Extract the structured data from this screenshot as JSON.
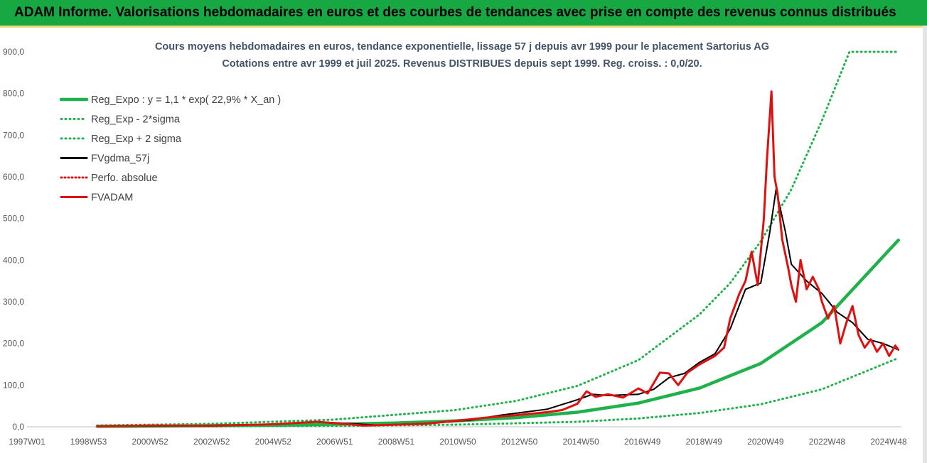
{
  "header": {
    "title": "ADAM Informe. Valorisations hebdomadaires en euros et des courbes de tendances avec prise en compte des revenus connus distribués"
  },
  "colors": {
    "header_bg": "#17a843",
    "reg_expo": "#1fb24a",
    "sigma": "#1fb24a",
    "fvgdma": "#000000",
    "perfo": "#e01010",
    "fvadam": "#e01010"
  },
  "chart_data": {
    "type": "line",
    "title": "Cours moyens hebdomadaires en euros, tendance exponentielle, lissage 57 j depuis avr 1999 pour le placement Sartorius AG",
    "subtitle": "Cotations entre avr 1999 et juil 2025. Revenus DISTRIBUES depuis sept 1999. Reg. croiss. : 0,0/20.",
    "xlabel": "",
    "ylabel": "",
    "ylim": [
      0,
      900
    ],
    "y_ticks": [
      "0,0",
      "100,0",
      "200,0",
      "300,0",
      "400,0",
      "500,0",
      "600,0",
      "700,0",
      "800,0",
      "900,0"
    ],
    "x_tick_labels": [
      "1997W01",
      "1998W53",
      "2000W52",
      "2002W52",
      "2004W52",
      "2006W51",
      "2008W51",
      "2010W50",
      "2012W50",
      "2014W50",
      "2016W49",
      "2018W49",
      "2020W49",
      "2022W48",
      "2024W48"
    ],
    "xlim": [
      1997.0,
      2025.6
    ],
    "grid": false,
    "legend_position": "top-left",
    "series": [
      {
        "name": "Reg_Expo : y = 1,1 * exp( 22,9% *  X_an )",
        "style": "solid-thick",
        "x": [
          1999.3,
          2001,
          2003,
          2005,
          2007,
          2009,
          2011,
          2013,
          2015,
          2017,
          2019,
          2021,
          2023,
          2025.5
        ],
        "values": [
          1.1,
          1.6,
          2.5,
          4,
          6,
          9,
          14,
          22,
          35,
          57,
          93,
          152,
          250,
          448
        ]
      },
      {
        "name": "Reg_Exp - 2*sigma",
        "style": "dotted",
        "x": [
          1999.3,
          2003,
          2007,
          2011,
          2015,
          2017,
          2019,
          2021,
          2023,
          2025.5
        ],
        "values": [
          0.4,
          0.9,
          2,
          5,
          12,
          20,
          33,
          54,
          90,
          165
        ]
      },
      {
        "name": "Reg_Exp + 2 sigma",
        "style": "dotted",
        "x": [
          1999.3,
          2003,
          2007,
          2011,
          2013,
          2015,
          2017,
          2019,
          2020,
          2021,
          2022,
          2023,
          2023.9,
          2025.5
        ],
        "values": [
          3.2,
          7,
          17,
          40,
          62,
          98,
          160,
          270,
          345,
          445,
          570,
          735,
          900,
          900
        ]
      },
      {
        "name": "FVgdma_57j",
        "style": "solid",
        "x": [
          1999.3,
          2002,
          2005,
          2006.5,
          2008.5,
          2010,
          2011.5,
          2012.5,
          2014,
          2015,
          2015.5,
          2016,
          2017,
          2017.5,
          2018,
          2018.5,
          2019,
          2019.5,
          2020,
          2020.5,
          2021,
          2021.3,
          2021.5,
          2021.8,
          2022,
          2022.5,
          2023,
          2023.5,
          2024,
          2024.5,
          2025,
          2025.5
        ],
        "values": [
          1,
          2,
          6,
          12,
          4,
          8,
          16,
          28,
          42,
          65,
          78,
          75,
          78,
          90,
          118,
          128,
          155,
          175,
          235,
          330,
          345,
          470,
          570,
          470,
          390,
          350,
          320,
          275,
          250,
          210,
          200,
          185
        ]
      },
      {
        "name": "Perfo. absolue",
        "style": "dotted",
        "x": [
          1999.3,
          2002,
          2005,
          2006.5,
          2008.5,
          2010,
          2011.5,
          2012.5,
          2014,
          2015,
          2015.5,
          2016,
          2017,
          2017.5,
          2018,
          2018.5,
          2019,
          2019.5,
          2020,
          2020.5,
          2021,
          2021.3,
          2021.5,
          2021.8,
          2022,
          2022.5,
          2023,
          2023.5,
          2024,
          2024.5,
          2025,
          2025.5
        ],
        "values": [
          1,
          2,
          6,
          12,
          4,
          8,
          16,
          28,
          42,
          65,
          78,
          75,
          78,
          90,
          118,
          128,
          155,
          175,
          235,
          330,
          345,
          470,
          570,
          470,
          390,
          350,
          320,
          275,
          250,
          210,
          200,
          185
        ]
      },
      {
        "name": "FVADAM",
        "style": "solid-thick",
        "x": [
          1999.3,
          2001,
          2003,
          2005,
          2006.5,
          2007,
          2008,
          2009,
          2010,
          2011,
          2012,
          2013,
          2014,
          2014.5,
          2015,
          2015.3,
          2015.6,
          2016,
          2016.5,
          2017,
          2017.3,
          2017.7,
          2018,
          2018.3,
          2018.6,
          2019,
          2019.5,
          2019.8,
          2020,
          2020.3,
          2020.5,
          2020.7,
          2020.9,
          2021.1,
          2021.2,
          2021.35,
          2021.45,
          2021.55,
          2021.7,
          2021.9,
          2022.0,
          2022.15,
          2022.3,
          2022.5,
          2022.7,
          2022.9,
          2023.0,
          2023.2,
          2023.4,
          2023.6,
          2023.8,
          2024.0,
          2024.2,
          2024.4,
          2024.6,
          2024.8,
          2025.0,
          2025.2,
          2025.4,
          2025.5
        ],
        "values": [
          1,
          3,
          2,
          6,
          12,
          9,
          3,
          5,
          7,
          14,
          22,
          28,
          35,
          40,
          55,
          85,
          72,
          78,
          70,
          92,
          80,
          130,
          128,
          100,
          130,
          150,
          170,
          190,
          260,
          320,
          350,
          420,
          340,
          500,
          640,
          805,
          600,
          560,
          450,
          380,
          340,
          300,
          400,
          330,
          360,
          330,
          300,
          260,
          290,
          200,
          250,
          290,
          220,
          190,
          210,
          180,
          200,
          170,
          195,
          185
        ]
      }
    ]
  }
}
